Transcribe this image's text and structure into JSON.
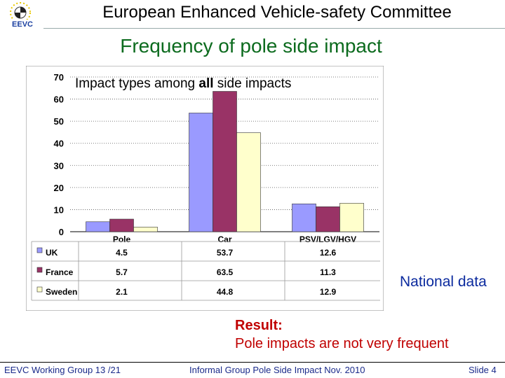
{
  "header": {
    "title": "European Enhanced Vehicle-safety Committee",
    "logo_text": "EEVC"
  },
  "slide": {
    "title": "Frequency of pole side impact"
  },
  "chart_data": {
    "type": "bar",
    "title_prefix": "Impact types among ",
    "title_bold": "all",
    "title_suffix": " side impacts",
    "categories": [
      "Pole",
      "Car",
      "PSV/LGV/HGV"
    ],
    "series": [
      {
        "name": "UK",
        "values": [
          4.5,
          53.7,
          12.6
        ],
        "color": "#9a9aff"
      },
      {
        "name": "France",
        "values": [
          5.7,
          63.5,
          11.3
        ],
        "color": "#993366"
      },
      {
        "name": "Sweden",
        "values": [
          2.1,
          44.8,
          12.9
        ],
        "color": "#ffffcc"
      }
    ],
    "ylim": [
      0,
      70
    ],
    "yticks": [
      0,
      10,
      20,
      30,
      40,
      50,
      60,
      70
    ],
    "grid": true,
    "data_table": true
  },
  "annotations": {
    "national": "National data",
    "result_label": "Result:",
    "result_text": "Pole impacts are not very frequent"
  },
  "footer": {
    "left": "EEVC Working Group 13 /21",
    "center": "Informal Group Pole Side Impact Nov. 2010",
    "right": "Slide 4"
  }
}
